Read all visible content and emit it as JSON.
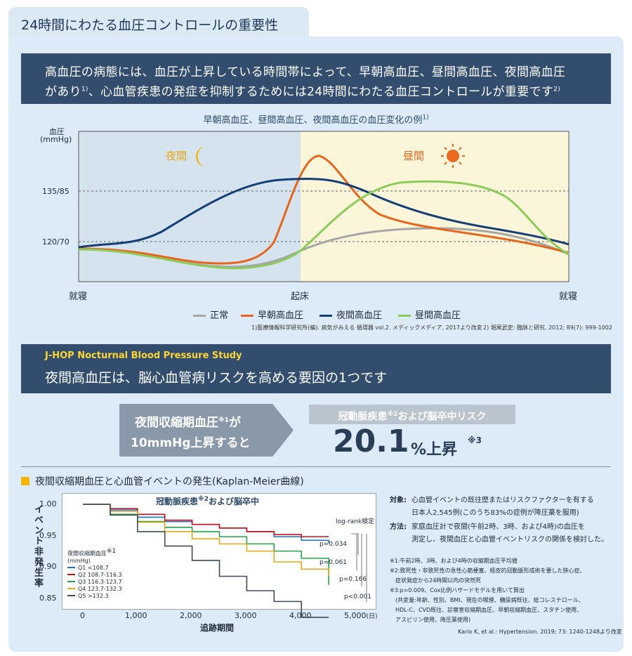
{
  "tab_title": "24時間にわたる血圧コントロールの重要性",
  "banner1": {
    "line1": "高血圧の病態には、血圧が上昇している時間帯によって、早朝高血圧、昼間高血圧、夜間高血圧",
    "line2": "があり",
    "line2_sup": "1)",
    "line2_rest": "、心血管疾患の発症を抑制するためには24時間にわたる血圧コントロールが重要です",
    "line2_sup2": "2)"
  },
  "figure1": {
    "subtitle": "早朝高血圧、昼間高血圧、夜間高血圧の血圧変化の例",
    "subtitle_sup": "1)",
    "y_label_1": "血圧",
    "y_label_2": "(mmHg)",
    "y_tick_upper": "135/85",
    "y_tick_lower": "120/70",
    "night_label": "夜間",
    "day_label": "昼間",
    "x_start": "就寝",
    "x_mid": "起床",
    "x_end": "就寝",
    "legend": [
      {
        "label": "正常",
        "color": "#a6a6a6"
      },
      {
        "label": "早朝高血圧",
        "color": "#e8651c"
      },
      {
        "label": "夜間高血圧",
        "color": "#153e75"
      },
      {
        "label": "昼間高血圧",
        "color": "#8ccc5a"
      }
    ],
    "ref1": "1)医療情報科学研究所(編). 病気がみえる 循環器 vol.2. メディックメディア, 2017より改変",
    "ref2": "2) 堀尾武史: 臨牀と研究. 2012; 89(7): 999-1002",
    "colors": {
      "night_bg": "#d4e3ed",
      "day_bg": "#fbf6d9",
      "moon": "#f5b400",
      "sun": "#ea6a1f"
    }
  },
  "banner2": {
    "english": "J-HOP Nocturnal Blood Pressure Study",
    "japanese": "夜間高血圧は、脳心血管病リスクを高める要因の1つです"
  },
  "risk": {
    "arrow_line1": "夜間収縮期血圧",
    "arrow_sup": "※1",
    "arrow_line1_end": "が",
    "arrow_line2": "10mmHg上昇すると",
    "pill_text": "冠動脈疾患",
    "pill_sup": "※2",
    "pill_text_end": "および脳卒中リスク",
    "value": "20.1",
    "unit": "%上昇",
    "value_sup": "※3"
  },
  "km": {
    "title": "夜間収縮期血圧と心血管イベントの発生(Kaplan-Meier曲線)",
    "subtitle": "冠動脈疾患",
    "subtitle_sup": "※2",
    "subtitle_end": "および脳卒中",
    "y_axis": "イベント非発生率",
    "x_axis": "追跡期間",
    "x_unit": "(日)",
    "logrank": "log-rank検定",
    "p_values": [
      "p=0.034",
      "p=0.061",
      "p=0.166",
      "p<0.001"
    ],
    "legend_title": "夜間収縮期血圧",
    "legend_title_sup": "※1",
    "legend_unit": "(mmHg)",
    "legend": [
      {
        "label": "Q1 <108.7",
        "color": "#1f6fc5"
      },
      {
        "label": "Q2 108.7-116.3",
        "color": "#c8121c"
      },
      {
        "label": "Q3 116.3-123.7",
        "color": "#24a24a"
      },
      {
        "label": "Q4 123.7-132.3",
        "color": "#e6a817"
      },
      {
        "label": "Q5 >132.3",
        "color": "#3c4a5a"
      }
    ]
  },
  "chart_data": {
    "type": "line",
    "title": "冠動脈疾患※2および脳卒中",
    "xlabel": "追跡期間",
    "ylabel": "イベント非発生率",
    "xlim": [
      0,
      5000
    ],
    "ylim": [
      0.84,
      1.0
    ],
    "x_ticks": [
      "0",
      "1,000",
      "2,000",
      "3,000",
      "4,000",
      "5,000"
    ],
    "y_ticks": [
      "1.00",
      "0.95",
      "0.90",
      "0.85"
    ],
    "series": [
      {
        "name": "Q1 <108.7",
        "x": [
          0,
          500,
          1000,
          1500,
          2000,
          2500,
          3000,
          3500,
          4000,
          4500
        ],
        "values": [
          1.0,
          0.992,
          0.982,
          0.976,
          0.972,
          0.967,
          0.962,
          0.955,
          0.95,
          0.946
        ]
      },
      {
        "name": "Q2 108.7-116.3",
        "x": [
          0,
          500,
          1000,
          1500,
          2000,
          2500,
          3000,
          3500,
          4000,
          4500
        ],
        "values": [
          1.0,
          0.994,
          0.986,
          0.978,
          0.972,
          0.967,
          0.962,
          0.958,
          0.955,
          0.955
        ]
      },
      {
        "name": "Q3 116.3-123.7",
        "x": [
          0,
          500,
          1000,
          1500,
          2000,
          2500,
          3000,
          3500,
          4000,
          4500
        ],
        "values": [
          1.0,
          0.986,
          0.976,
          0.968,
          0.962,
          0.955,
          0.945,
          0.935,
          0.925,
          0.888
        ]
      },
      {
        "name": "Q4 123.7-132.3",
        "x": [
          0,
          500,
          1000,
          1500,
          2000,
          2500,
          3000,
          3500,
          4000,
          4500
        ],
        "values": [
          1.0,
          0.99,
          0.975,
          0.962,
          0.952,
          0.945,
          0.935,
          0.92,
          0.91,
          0.9
        ]
      },
      {
        "name": "Q5 >132.3",
        "x": [
          0,
          500,
          1000,
          1500,
          2000,
          2500,
          3000,
          3500,
          4000,
          4500
        ],
        "values": [
          1.0,
          0.985,
          0.962,
          0.942,
          0.922,
          0.9,
          0.88,
          0.865,
          0.843,
          0.843
        ]
      }
    ]
  },
  "study_notes": {
    "subject_label": "対象:",
    "subject_1": "心血管イベントの既往歴またはリスクファクターを有する",
    "subject_2": "日本人2,545例(このうち83%の症例が降圧薬を服用)",
    "method_label": "方法:",
    "method_1": "家庭血圧計で夜間(午前2時、3時、および4時)の血圧を",
    "method_2": "測定し、夜間血圧と心血管イベントリスクの関係を検討した。"
  },
  "footnotes": [
    "※1:午前2時、3時、および4時の収縮期血圧平均値",
    "※2:致死性・非致死性の急性心筋梗塞、経皮的冠動脈形成術を要した狭心症、",
    "　症状発症から24時間以内の突然死",
    "※3:p=0.009、Cox比例ハザードモデルを用いて算出",
    "　(共変量:年齢、性別、BMI、現在の喫煙、糖尿病既往、総コレステロール、",
    "　HDL-C、CVD既往、診察室収縮期血圧、早朝収縮期血圧、スタチン使用、",
    "　アスピリン使用、降圧薬使用)"
  ],
  "citation": "Kario K, et al.: Hypertension. 2019; 73: 1240-1248より改変"
}
